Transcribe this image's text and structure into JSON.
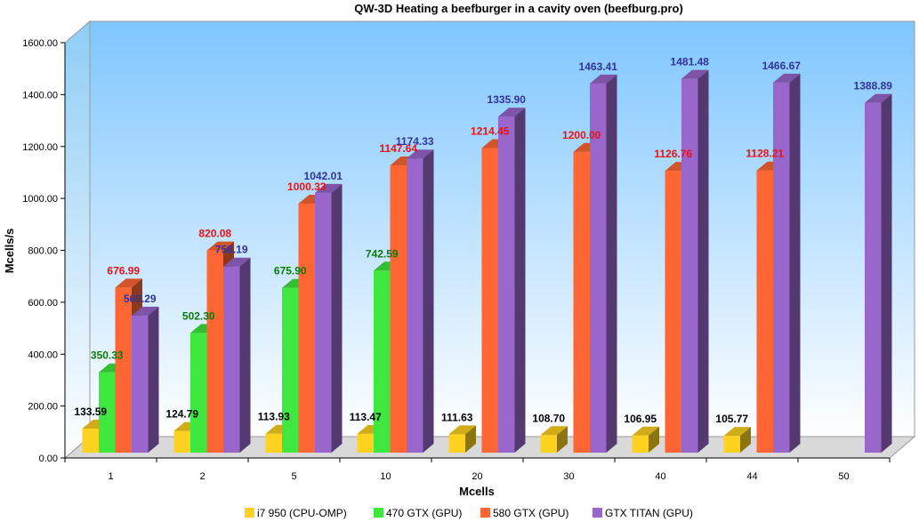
{
  "chart_data": {
    "type": "bar",
    "title": "QW-3D Heating a beefburger in a cavity oven (beefburg.pro)",
    "xlabel": "Mcells",
    "ylabel": "Mcells/s",
    "ylim": [
      0,
      1600
    ],
    "yticks": [
      "0.00",
      "200.00",
      "400.00",
      "600.00",
      "800.00",
      "1000.00",
      "1200.00",
      "1400.00",
      "1600.00"
    ],
    "categories": [
      "1",
      "2",
      "5",
      "10",
      "20",
      "30",
      "40",
      "44",
      "50"
    ],
    "series": [
      {
        "name": "i7 950 (CPU-OMP)",
        "color": "#ffd21f",
        "label_color": "#000000",
        "values": [
          133.59,
          124.79,
          113.93,
          113.47,
          111.63,
          108.7,
          106.95,
          105.77,
          null
        ],
        "labels": [
          "133.59",
          "124.79",
          "113.93",
          "113.47",
          "111.63",
          "108.70",
          "106.95",
          "105.77",
          ""
        ]
      },
      {
        "name": "470 GTX (GPU)",
        "color": "#3fe83f",
        "label_color": "#0a7a0a",
        "values": [
          350.33,
          502.3,
          675.9,
          742.59,
          null,
          null,
          null,
          null,
          null
        ],
        "labels": [
          "350.33",
          "502.30",
          "675.90",
          "742.59",
          "",
          "",
          "",
          "",
          ""
        ]
      },
      {
        "name": "580 GTX (GPU)",
        "color": "#ff6633",
        "label_color": "#ee1111",
        "values": [
          676.99,
          820.08,
          1000.33,
          1147.64,
          1214.45,
          1200.0,
          1126.76,
          1128.21,
          null
        ],
        "labels": [
          "676.99",
          "820.08",
          "1000.33",
          "1147.64",
          "1214.45",
          "1200.00",
          "1126.76",
          "1128.21",
          ""
        ]
      },
      {
        "name": "GTX TITAN (GPU)",
        "color": "#9966cc",
        "label_color": "#333399",
        "values": [
          569.29,
          758.19,
          1042.01,
          1174.33,
          1335.9,
          1463.41,
          1481.48,
          1466.67,
          1388.89
        ],
        "labels": [
          "569.29",
          "758.19",
          "1042.01",
          "1174.33",
          "1335.90",
          "1463.41",
          "1481.48",
          "1466.67",
          "1388.89"
        ]
      }
    ],
    "grid": false,
    "legend_position": "bottom",
    "background": {
      "top": "#7fc6ff",
      "bottom": "#ffffff",
      "floor": "#d9d9d9"
    }
  }
}
